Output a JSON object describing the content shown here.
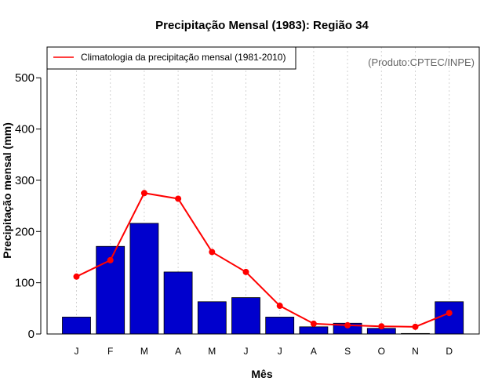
{
  "chart_data": {
    "type": "bar",
    "title": "Precipitação Mensal (1983): Região 34",
    "xlabel": "Mês",
    "ylabel": "Precipitação mensal (mm)",
    "source": "(Produto:CPTEC/INPE)",
    "categories": [
      "J",
      "F",
      "M",
      "A",
      "M",
      "J",
      "J",
      "A",
      "S",
      "O",
      "N",
      "D"
    ],
    "ylim": [
      0,
      560
    ],
    "yticks": [
      0,
      100,
      200,
      300,
      400,
      500
    ],
    "grid": "vertical-dotted",
    "legend_position": "top-left",
    "series": [
      {
        "name": "Precipitação mensal 1983",
        "kind": "bar",
        "color": "#0000CD",
        "values": [
          33,
          171,
          216,
          121,
          63,
          71,
          33,
          14,
          21,
          11,
          1,
          63
        ]
      },
      {
        "name": "Climatologia da precipitação mensal (1981-2010)",
        "kind": "line",
        "color": "#FF0000",
        "values": [
          112,
          144,
          275,
          264,
          160,
          121,
          55,
          20,
          17,
          15,
          14,
          41
        ]
      }
    ]
  }
}
